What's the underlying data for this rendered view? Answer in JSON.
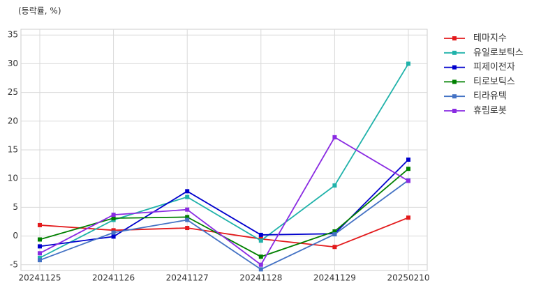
{
  "chart_data": {
    "type": "line",
    "y_label": "(등락률, %)",
    "categories": [
      "20241125",
      "20241126",
      "20241127",
      "20241128",
      "20241129",
      "20250210"
    ],
    "ylim": [
      -6,
      36
    ],
    "yticks": [
      -5,
      0,
      5,
      10,
      15,
      20,
      25,
      30,
      35
    ],
    "grid": true,
    "legend": "outside-right",
    "series": [
      {
        "name": "테마지수",
        "color": "#e31a1c",
        "values": [
          1.9,
          1.0,
          1.4,
          -0.5,
          -1.9,
          3.2
        ]
      },
      {
        "name": "유일로보틱스",
        "color": "#20b2aa",
        "values": [
          -3.8,
          2.8,
          6.8,
          -0.8,
          8.8,
          30.0
        ]
      },
      {
        "name": "피제이전자",
        "color": "#0000cd",
        "values": [
          -1.8,
          -0.1,
          7.8,
          0.2,
          0.4,
          13.3
        ]
      },
      {
        "name": "티로보틱스",
        "color": "#008000",
        "values": [
          -0.6,
          3.1,
          3.3,
          -3.6,
          0.8,
          11.7
        ]
      },
      {
        "name": "티라유텍",
        "color": "#4472c4",
        "values": [
          -4.2,
          0.6,
          2.8,
          -5.8,
          0.3,
          9.7
        ]
      },
      {
        "name": "휴림로봇",
        "color": "#8a2be2",
        "values": [
          -3.0,
          3.7,
          4.6,
          -5.0,
          17.2,
          9.6
        ]
      }
    ]
  }
}
